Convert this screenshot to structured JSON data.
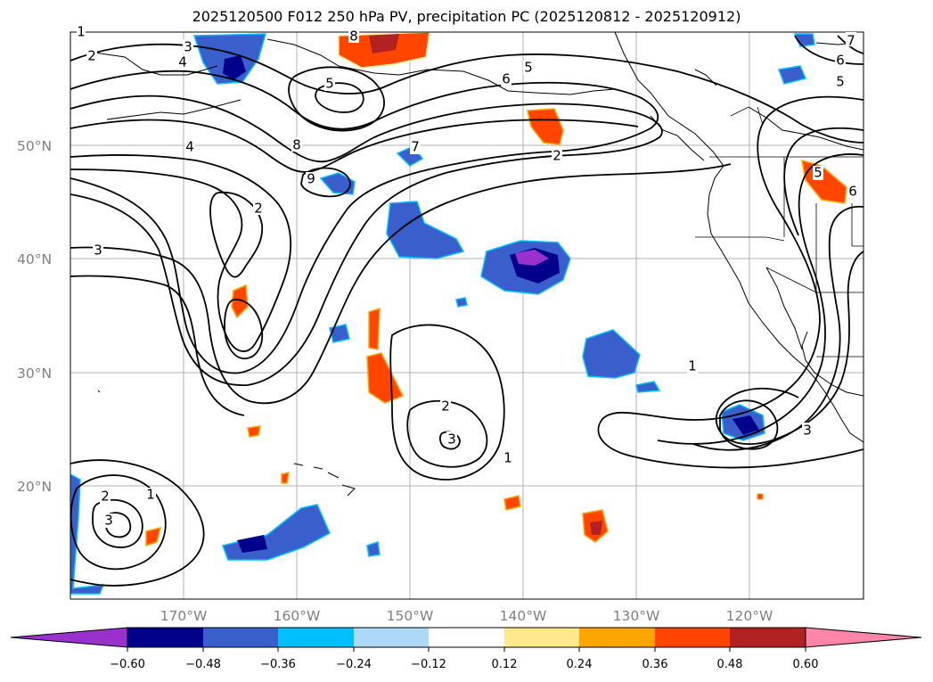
{
  "title": "2025120500 F012 250 hPa PV, precipitation PC (2025120812 - 2025120912)",
  "latitude_labels": [
    "50°N",
    "40°N",
    "30°N",
    "20°N"
  ],
  "longitude_labels": [
    "170°W",
    "160°W",
    "150°W",
    "140°W",
    "130°W",
    "120°W"
  ],
  "contour_labels": [
    "1",
    "2",
    "3",
    "4",
    "5",
    "6",
    "7",
    "8",
    "9"
  ],
  "colorbar": {
    "ticks": [
      "−0.60",
      "−0.48",
      "−0.36",
      "−0.24",
      "−0.12",
      "0.12",
      "0.24",
      "0.36",
      "0.48",
      "0.60"
    ],
    "colors": [
      "#9932cc",
      "#00008b",
      "#3a5fcd",
      "#00bfff",
      "#add8f6",
      "#ffffff",
      "#ffe98c",
      "#ffa500",
      "#ff4500",
      "#b22222",
      "#ff86a8"
    ]
  }
}
